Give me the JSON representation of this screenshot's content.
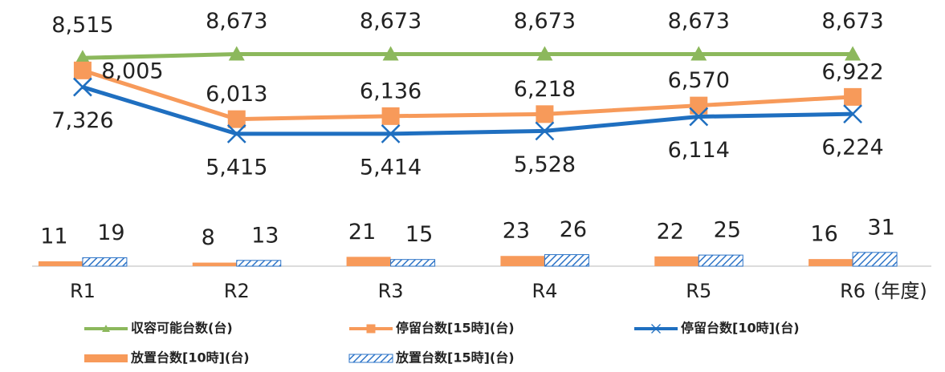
{
  "chart_data": {
    "type": "combo",
    "categories": [
      "R1",
      "R2",
      "R3",
      "R4",
      "R5",
      "R6"
    ],
    "x_label": "(年度)",
    "ylim": [
      0,
      10000
    ],
    "y2lim": [
      0,
      550
    ],
    "series": [
      {
        "name": "収容可能台数(台)",
        "type": "line",
        "marker": "triangle",
        "color": "#8cb85c",
        "values": [
          8515,
          8673,
          8673,
          8673,
          8673,
          8673
        ],
        "value_labels": [
          "8,515",
          "8,673",
          "8,673",
          "8,673",
          "8,673",
          "8,673"
        ]
      },
      {
        "name": "停留台数[15時](台)",
        "type": "line",
        "marker": "square",
        "color": "#f79a5a",
        "values": [
          8005,
          6013,
          6136,
          6218,
          6570,
          6922
        ],
        "value_labels": [
          "8,005",
          "6,013",
          "6,136",
          "6,218",
          "6,570",
          "6,922"
        ]
      },
      {
        "name": "停留台数[10時](台)",
        "type": "line",
        "marker": "x",
        "color": "#1f6fc0",
        "values": [
          7326,
          5415,
          5414,
          5528,
          6114,
          6224
        ],
        "value_labels": [
          "7,326",
          "5,415",
          "5,414",
          "5,528",
          "6,114",
          "6,224"
        ]
      },
      {
        "name": "放置台数[10時](台)",
        "type": "bar",
        "axis": "y2",
        "pattern": "solid",
        "color": "#f79a5a",
        "values": [
          11,
          8,
          21,
          23,
          22,
          16
        ]
      },
      {
        "name": "放置台数[15時](台)",
        "type": "bar",
        "axis": "y2",
        "pattern": "hatch",
        "color": "#2e75c8",
        "values": [
          19,
          13,
          15,
          26,
          25,
          31
        ]
      }
    ]
  }
}
